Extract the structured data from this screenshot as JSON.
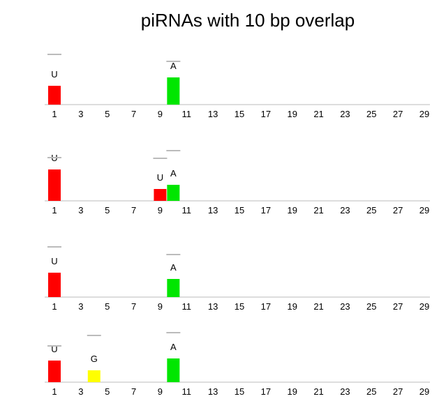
{
  "title": "piRNAs with 10 bp overlap",
  "chart_data": [
    {
      "type": "bar",
      "x": [
        1,
        10
      ],
      "values": [
        27,
        39
      ],
      "upper": [
        72,
        62
      ],
      "letters": [
        "U",
        "A"
      ],
      "colors": [
        "#ff0000",
        "#00e600"
      ],
      "xlim": [
        1,
        29
      ],
      "xticks": [
        1,
        3,
        5,
        7,
        9,
        11,
        13,
        15,
        17,
        19,
        21,
        23,
        25,
        27,
        29
      ],
      "ylim": [
        0,
        80
      ]
    },
    {
      "type": "bar",
      "x": [
        1,
        9,
        10
      ],
      "values": [
        45,
        17,
        23
      ],
      "upper": [
        62,
        61,
        72
      ],
      "letters": [
        "U",
        "U",
        "A"
      ],
      "colors": [
        "#ff0000",
        "#ff0000",
        "#00e600"
      ],
      "xlim": [
        1,
        29
      ],
      "xticks": [
        1,
        3,
        5,
        7,
        9,
        11,
        13,
        15,
        17,
        19,
        21,
        23,
        25,
        27,
        29
      ],
      "ylim": [
        0,
        80
      ]
    },
    {
      "type": "bar",
      "x": [
        1,
        10
      ],
      "values": [
        35,
        26
      ],
      "upper": [
        72,
        61
      ],
      "letters": [
        "U",
        "A"
      ],
      "colors": [
        "#ff0000",
        "#00e600"
      ],
      "xlim": [
        1,
        29
      ],
      "xticks": [
        1,
        3,
        5,
        7,
        9,
        11,
        13,
        15,
        17,
        19,
        21,
        23,
        25,
        27,
        29
      ],
      "ylim": [
        0,
        80
      ]
    },
    {
      "type": "bar",
      "x": [
        1,
        4,
        10
      ],
      "values": [
        31,
        17,
        34
      ],
      "upper": [
        52,
        67,
        71
      ],
      "letters": [
        "U",
        "G",
        "A"
      ],
      "colors": [
        "#ff0000",
        "#ffff00",
        "#00e600"
      ],
      "xlim": [
        1,
        29
      ],
      "xticks": [
        1,
        3,
        5,
        7,
        9,
        11,
        13,
        15,
        17,
        19,
        21,
        23,
        25,
        27,
        29
      ],
      "ylim": [
        0,
        80
      ]
    }
  ]
}
